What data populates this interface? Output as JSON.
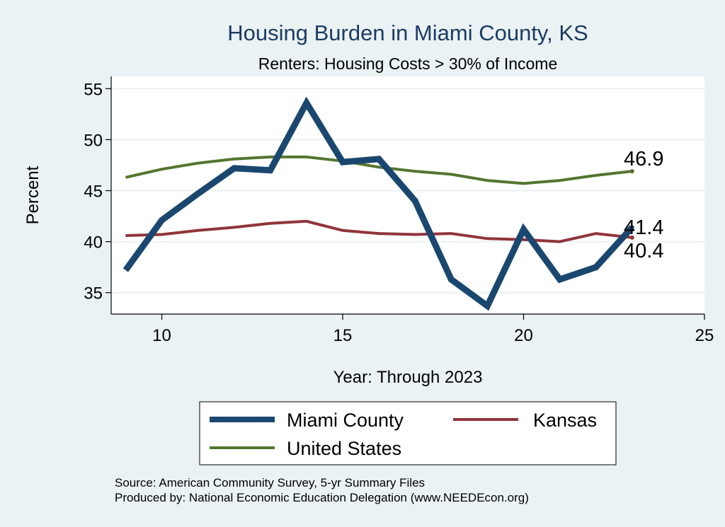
{
  "chart_data": {
    "type": "line",
    "title": "Housing Burden in Miami County, KS",
    "subtitle": "Renters: Housing Costs > 30% of Income",
    "xlabel": "Year: Through 2023",
    "ylabel": "Percent",
    "xlim": [
      8.6,
      25
    ],
    "ylim": [
      32.9,
      56.2
    ],
    "xticks": [
      10,
      15,
      20,
      25
    ],
    "yticks": [
      35,
      40,
      45,
      50,
      55
    ],
    "grid": true,
    "legend_position": "bottom",
    "series": [
      {
        "name": "Miami County",
        "color": "#1a476f",
        "x": [
          9,
          10,
          11,
          12,
          13,
          14,
          15,
          16,
          17,
          18,
          19,
          20,
          21,
          22,
          23
        ],
        "values": [
          37.2,
          42.1,
          44.7,
          47.2,
          47.0,
          53.6,
          47.8,
          48.1,
          44.0,
          36.3,
          33.7,
          41.2,
          36.3,
          37.5,
          41.4
        ],
        "end_label": "41.4"
      },
      {
        "name": "Kansas",
        "color": "#90353b",
        "x": [
          9,
          10,
          11,
          12,
          13,
          14,
          15,
          16,
          17,
          18,
          19,
          20,
          21,
          22,
          23
        ],
        "values": [
          40.6,
          40.7,
          41.1,
          41.4,
          41.8,
          42.0,
          41.1,
          40.8,
          40.7,
          40.8,
          40.3,
          40.2,
          40.0,
          40.8,
          40.4
        ],
        "end_label": "40.4"
      },
      {
        "name": "United States",
        "color": "#55752f",
        "x": [
          9,
          10,
          11,
          12,
          13,
          14,
          15,
          16,
          17,
          18,
          19,
          20,
          21,
          22,
          23
        ],
        "values": [
          46.3,
          47.1,
          47.7,
          48.1,
          48.3,
          48.3,
          47.9,
          47.3,
          46.9,
          46.6,
          46.0,
          45.7,
          46.0,
          46.5,
          46.9
        ],
        "end_label": "46.9"
      }
    ]
  },
  "footnotes": {
    "source": "Source: American Community Survey, 5-yr Summary Files",
    "produced": "Produced by: National Economic Education Delegation (www.NEEDEcon.org)"
  }
}
